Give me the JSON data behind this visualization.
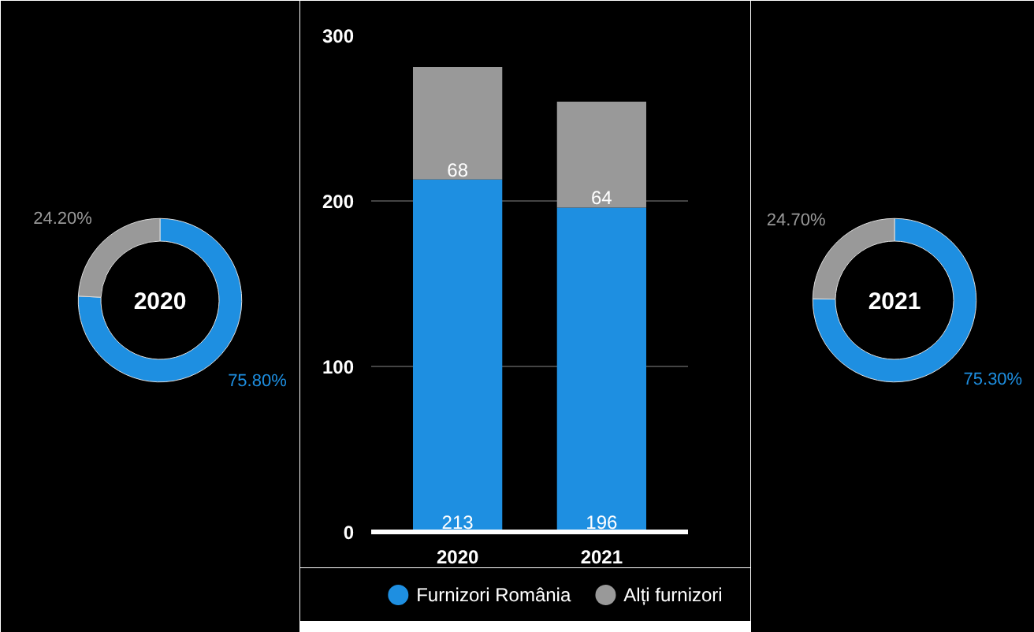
{
  "chart_data": [
    {
      "type": "donut",
      "title": "2020",
      "values": [
        75.8,
        24.2
      ],
      "colors": [
        "#1e8fe1",
        "#999999"
      ],
      "value_labels": [
        "75.80%",
        "24.20%"
      ]
    },
    {
      "type": "bar",
      "categories": [
        "2020",
        "2021"
      ],
      "stacked": true,
      "ylim": [
        0,
        300
      ],
      "yticks": [
        0,
        100,
        200,
        300
      ],
      "grid": "y",
      "legend": "bottom",
      "data_labels": true,
      "series": [
        {
          "name": "Furnizori România",
          "color": "#1e8fe1",
          "values": [
            213,
            196
          ]
        },
        {
          "name": "Alți furnizori",
          "color": "#999999",
          "values": [
            68,
            64
          ]
        }
      ]
    },
    {
      "type": "donut",
      "title": "2021",
      "values": [
        75.3,
        24.7
      ],
      "colors": [
        "#1e8fe1",
        "#999999"
      ],
      "value_labels": [
        "75.30%",
        "24.70%"
      ]
    }
  ]
}
